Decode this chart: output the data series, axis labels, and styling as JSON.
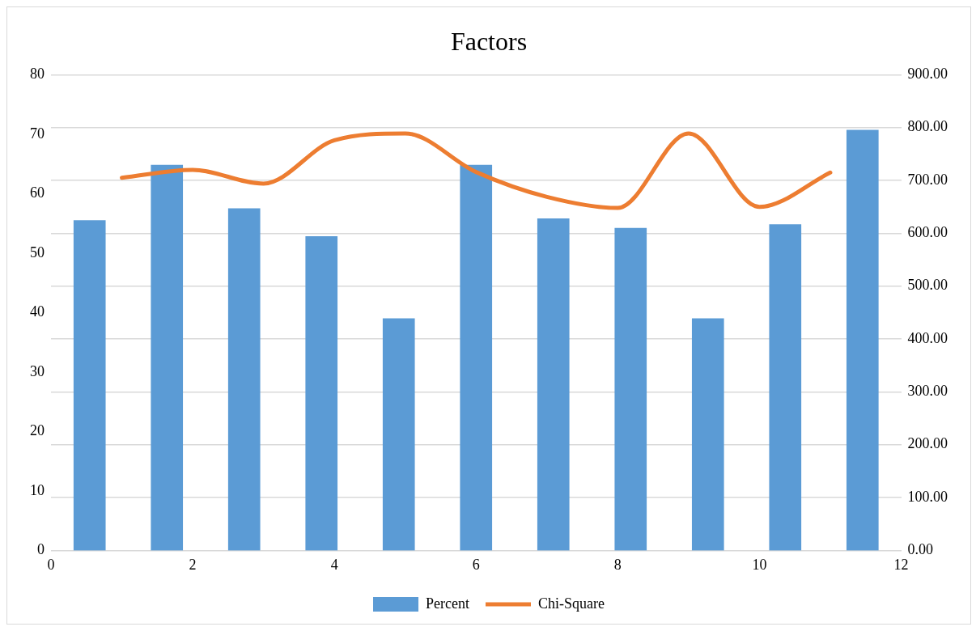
{
  "chart_data": {
    "type": "bar",
    "title": "Factors",
    "series": [
      {
        "name": "Percent",
        "color": "#5b9bd5",
        "x": [
          0.545,
          1.636,
          2.727,
          3.818,
          4.909,
          6.0,
          7.091,
          8.182,
          9.273,
          10.364,
          11.455
        ],
        "values": [
          55.5,
          64.8,
          57.5,
          52.8,
          39.0,
          64.8,
          55.8,
          54.2,
          39.0,
          54.8,
          70.7
        ]
      },
      {
        "name": "Chi-Square",
        "type": "line",
        "axis": "y2",
        "color": "#ed7d31",
        "x": [
          1,
          2,
          3,
          4,
          5,
          6,
          7,
          8,
          9,
          10,
          11
        ],
        "values": [
          705,
          720,
          694,
          776,
          789,
          716,
          669,
          648,
          789,
          650,
          715
        ]
      }
    ],
    "xlim": [
      0,
      12
    ],
    "xticks": [
      0,
      2,
      4,
      6,
      8,
      10,
      12
    ],
    "ylim": [
      0,
      80
    ],
    "yticks": [
      0,
      10,
      20,
      30,
      40,
      50,
      60,
      70,
      80
    ],
    "y2lim": [
      0,
      900
    ],
    "y2ticks": [
      {
        "value": 0,
        "label": "0.00"
      },
      {
        "value": 100,
        "label": "100.00"
      },
      {
        "value": 200,
        "label": "200.00"
      },
      {
        "value": 300,
        "label": "300.00"
      },
      {
        "value": 400,
        "label": "400.00"
      },
      {
        "value": 500,
        "label": "500.00"
      },
      {
        "value": 600,
        "label": "600.00"
      },
      {
        "value": 700,
        "label": "700.00"
      },
      {
        "value": 800,
        "label": "800.00"
      },
      {
        "value": 900,
        "label": "900.00"
      }
    ],
    "grid": "y",
    "legend": "bottom",
    "marker": "none"
  }
}
